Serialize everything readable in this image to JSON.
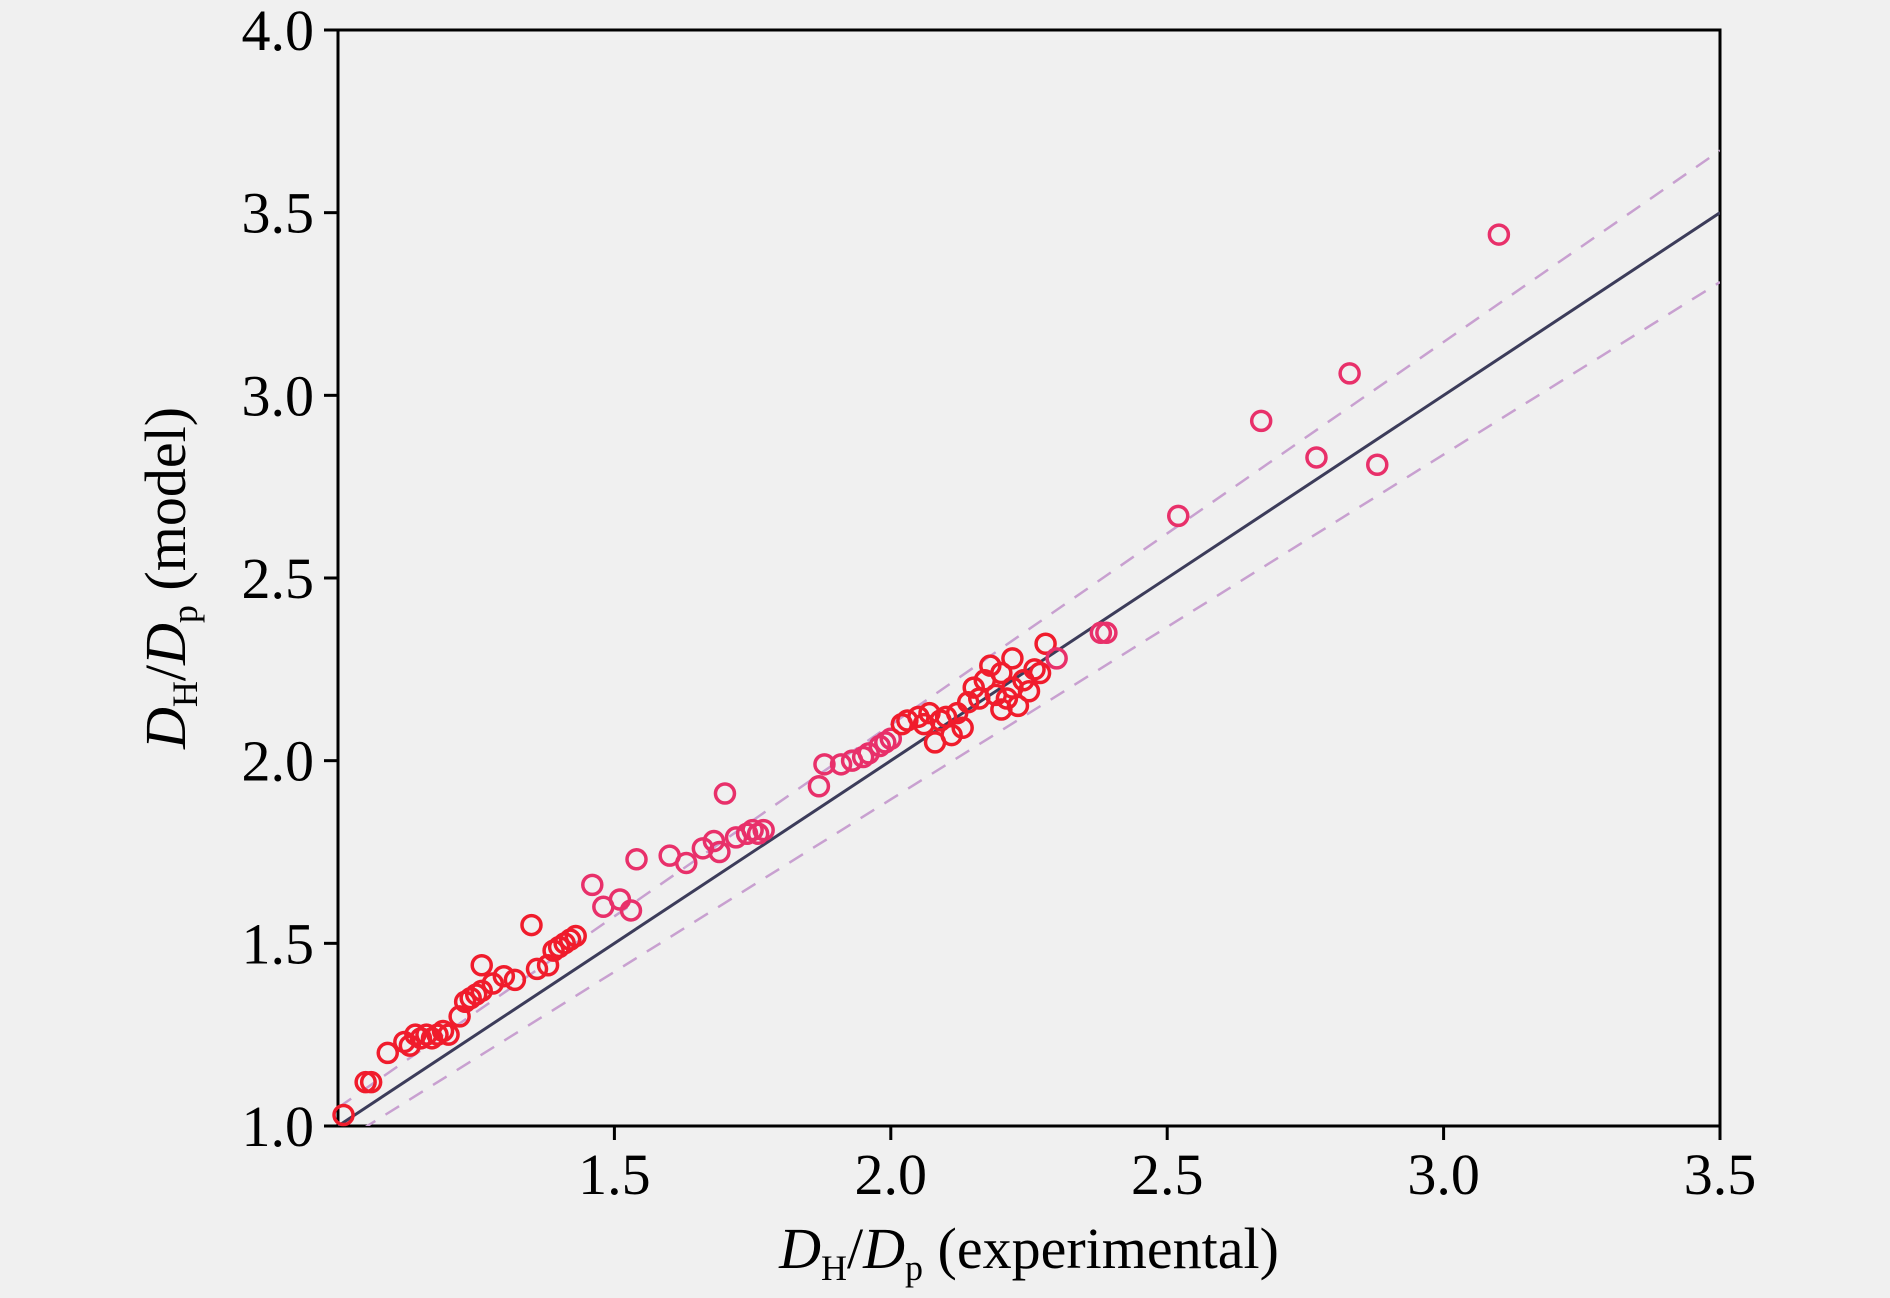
{
  "chart_data": {
    "type": "scatter",
    "title": "",
    "xlabel": {
      "symbol1": "D",
      "sub1": "H",
      "slash": "/",
      "symbol2": "D",
      "sub2": "p",
      "suffix": " (experimental)"
    },
    "ylabel": {
      "symbol1": "D",
      "sub1": "H",
      "slash": "/",
      "symbol2": "D",
      "sub2": "p",
      "suffix": " (model)"
    },
    "xlim": [
      1.0,
      3.5
    ],
    "ylim": [
      1.0,
      4.0
    ],
    "xticks": [
      1.5,
      2.0,
      2.5,
      3.0,
      3.5
    ],
    "xtick_labels": [
      "1.5",
      "2.0",
      "2.5",
      "3.0",
      "3.5"
    ],
    "yticks": [
      1.0,
      1.5,
      2.0,
      2.5,
      3.0,
      3.5,
      4.0
    ],
    "ytick_labels": [
      "1.0",
      "1.5",
      "2.0",
      "2.5",
      "3.0",
      "3.5",
      "4.0"
    ],
    "grid": false,
    "colors": {
      "points": "#e8306a",
      "dense_points": "#f01c2c",
      "fit_line": "#3c3c5a",
      "bounds": "#c8a0d0"
    },
    "lines": [
      {
        "kind": "fit",
        "style": "solid",
        "points": [
          [
            1.0,
            1.0
          ],
          [
            3.5,
            3.5
          ]
        ]
      },
      {
        "kind": "upper-bound",
        "style": "dashed",
        "points": [
          [
            1.0,
            1.05
          ],
          [
            3.5,
            3.67
          ]
        ]
      },
      {
        "kind": "lower-bound",
        "style": "dashed",
        "points": [
          [
            1.0,
            0.95
          ],
          [
            3.5,
            3.31
          ]
        ]
      }
    ],
    "points": [
      [
        1.01,
        1.03
      ],
      [
        1.05,
        1.12
      ],
      [
        1.06,
        1.12
      ],
      [
        1.09,
        1.2
      ],
      [
        1.12,
        1.23
      ],
      [
        1.13,
        1.22
      ],
      [
        1.14,
        1.25
      ],
      [
        1.15,
        1.24
      ],
      [
        1.16,
        1.25
      ],
      [
        1.17,
        1.24
      ],
      [
        1.18,
        1.25
      ],
      [
        1.19,
        1.26
      ],
      [
        1.2,
        1.25
      ],
      [
        1.22,
        1.3
      ],
      [
        1.23,
        1.34
      ],
      [
        1.24,
        1.35
      ],
      [
        1.25,
        1.36
      ],
      [
        1.26,
        1.37
      ],
      [
        1.26,
        1.44
      ],
      [
        1.28,
        1.39
      ],
      [
        1.3,
        1.41
      ],
      [
        1.32,
        1.4
      ],
      [
        1.35,
        1.55
      ],
      [
        1.36,
        1.43
      ],
      [
        1.38,
        1.44
      ],
      [
        1.39,
        1.48
      ],
      [
        1.4,
        1.49
      ],
      [
        1.41,
        1.5
      ],
      [
        1.42,
        1.51
      ],
      [
        1.43,
        1.52
      ],
      [
        1.46,
        1.66
      ],
      [
        1.48,
        1.6
      ],
      [
        1.51,
        1.62
      ],
      [
        1.53,
        1.59
      ],
      [
        1.54,
        1.73
      ],
      [
        1.6,
        1.74
      ],
      [
        1.63,
        1.72
      ],
      [
        1.66,
        1.76
      ],
      [
        1.68,
        1.78
      ],
      [
        1.69,
        1.75
      ],
      [
        1.7,
        1.91
      ],
      [
        1.72,
        1.79
      ],
      [
        1.74,
        1.8
      ],
      [
        1.75,
        1.81
      ],
      [
        1.76,
        1.8
      ],
      [
        1.77,
        1.81
      ],
      [
        1.87,
        1.93
      ],
      [
        1.88,
        1.99
      ],
      [
        1.91,
        1.99
      ],
      [
        1.93,
        2.0
      ],
      [
        1.95,
        2.01
      ],
      [
        1.96,
        2.02
      ],
      [
        1.98,
        2.04
      ],
      [
        1.99,
        2.05
      ],
      [
        2.0,
        2.06
      ],
      [
        2.02,
        2.1
      ],
      [
        2.03,
        2.11
      ],
      [
        2.05,
        2.12
      ],
      [
        2.06,
        2.1
      ],
      [
        2.07,
        2.13
      ],
      [
        2.08,
        2.05
      ],
      [
        2.09,
        2.11
      ],
      [
        2.1,
        2.12
      ],
      [
        2.11,
        2.07
      ],
      [
        2.12,
        2.13
      ],
      [
        2.13,
        2.09
      ],
      [
        2.14,
        2.16
      ],
      [
        2.15,
        2.2
      ],
      [
        2.16,
        2.17
      ],
      [
        2.17,
        2.22
      ],
      [
        2.18,
        2.26
      ],
      [
        2.19,
        2.18
      ],
      [
        2.2,
        2.24
      ],
      [
        2.2,
        2.14
      ],
      [
        2.21,
        2.17
      ],
      [
        2.22,
        2.28
      ],
      [
        2.22,
        2.2
      ],
      [
        2.23,
        2.15
      ],
      [
        2.24,
        2.22
      ],
      [
        2.25,
        2.19
      ],
      [
        2.26,
        2.25
      ],
      [
        2.27,
        2.24
      ],
      [
        2.28,
        2.32
      ],
      [
        2.3,
        2.28
      ],
      [
        2.38,
        2.35
      ],
      [
        2.39,
        2.35
      ],
      [
        2.52,
        2.67
      ],
      [
        2.67,
        2.93
      ],
      [
        2.77,
        2.83
      ],
      [
        2.83,
        3.06
      ],
      [
        2.88,
        2.81
      ],
      [
        3.1,
        3.44
      ]
    ]
  }
}
